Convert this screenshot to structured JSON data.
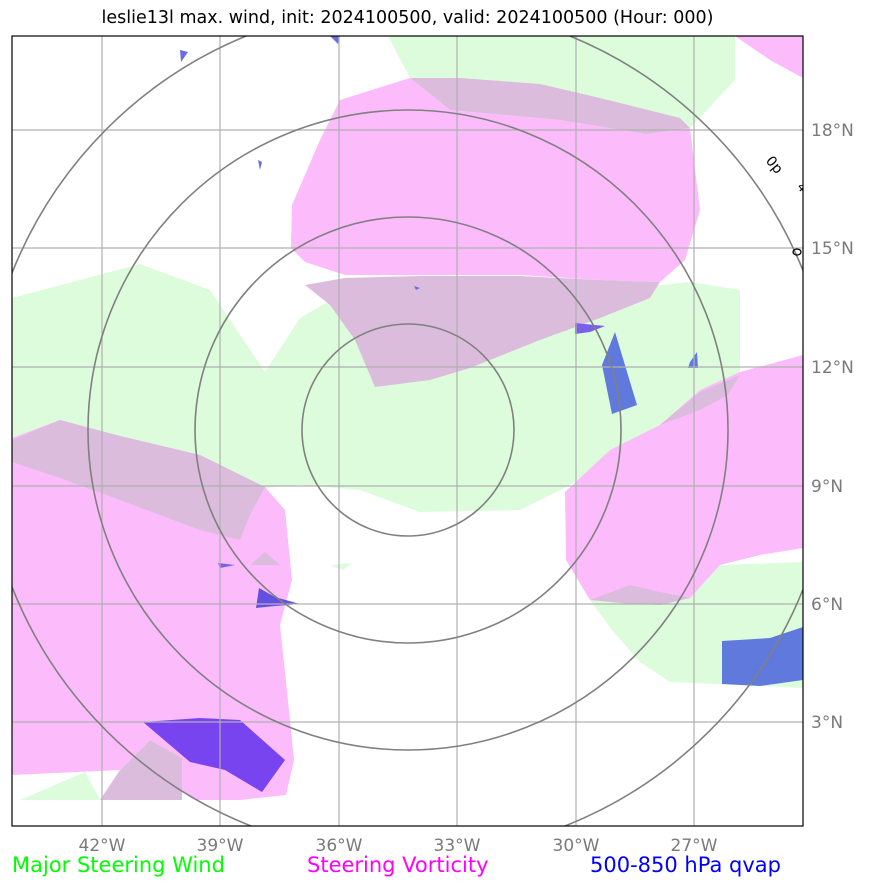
{
  "title": "leslie13l max. wind, init: 2024100500, valid: 2024100500 (Hour: 000)",
  "map": {
    "lon_ticks": [
      "42°W",
      "39°W",
      "36°W",
      "33°W",
      "30°W",
      "27°W"
    ],
    "lat_ticks": [
      "18°N",
      "15°N",
      "12°N",
      "9°N",
      "6°N",
      "3°N"
    ],
    "storm_label": "0p",
    "colors": {
      "steering_wind": "#dcfcdc",
      "vorticity": "#fcbcfc",
      "overlap": "#dcbcdc",
      "qvap_blue": "#5f7adc",
      "qvap_purple": "#7744f0",
      "range_rings": "#808080",
      "grid": "#b0b0b0"
    }
  },
  "legend": {
    "wind_label": "Major Steering Wind",
    "wind_color": "#00ff00",
    "vorticity_label": "Steering Vorticity",
    "vorticity_color": "#ff00ff",
    "qvap_label": "500-850 hPa qvap",
    "qvap_color": "#0000ff"
  }
}
